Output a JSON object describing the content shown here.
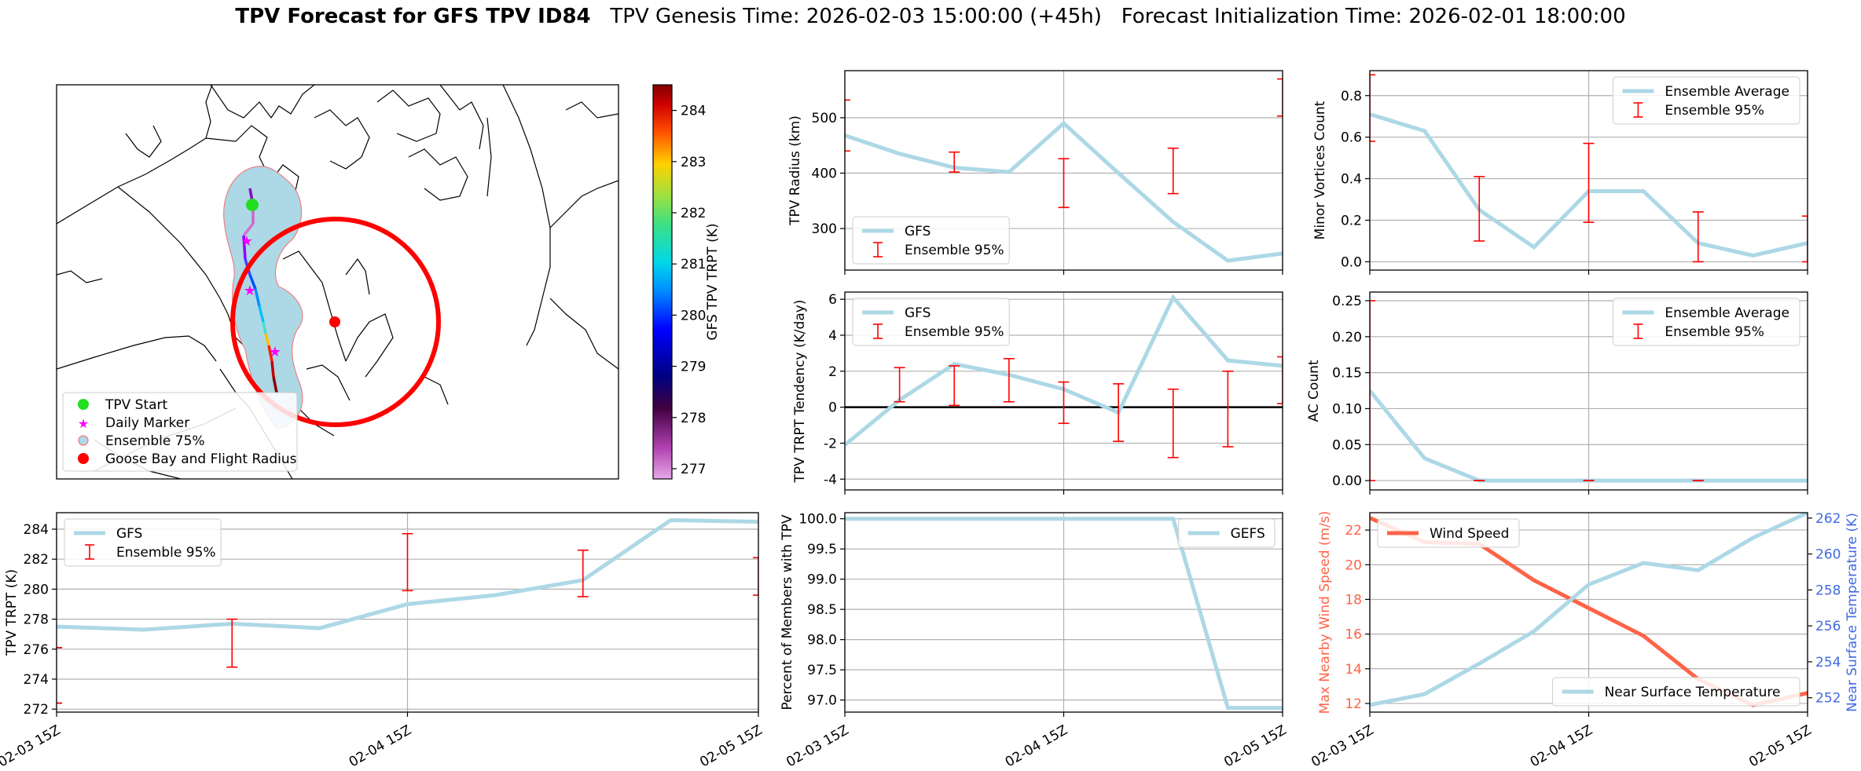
{
  "title": {
    "bold": "TPV Forecast for GFS TPV ID84",
    "genesis": "TPV Genesis Time: 2026-02-03 15:00:00 (+45h)",
    "init": "Forecast Initialization Time: 2026-02-01 18:00:00"
  },
  "colors": {
    "gfs_line": "#add8e6",
    "ensemble_bar": "#ff0000",
    "wind": "#ff6347",
    "temp_axis": "#4169e1",
    "map_circle": "#ff0000",
    "ensemble_fill": "#add8e6"
  },
  "chart_data": [
    {
      "id": "map",
      "type": "map",
      "legend": [
        "TPV Start",
        "Daily Marker",
        "Ensemble 75%",
        "Goose Bay and Flight Radius"
      ],
      "colorbar": {
        "label": "GFS TPV TRPT (K)",
        "min": 276.8,
        "max": 284.5,
        "ticks": [
          277,
          278,
          279,
          280,
          281,
          282,
          283,
          284
        ]
      }
    },
    {
      "id": "trpt",
      "type": "line",
      "ylabel": "TPV TRPT (K)",
      "ylim": [
        271.8,
        285.1
      ],
      "yticks": [
        272,
        274,
        276,
        278,
        280,
        282,
        284
      ],
      "x": [
        0,
        6,
        12,
        18,
        24,
        30,
        36,
        42,
        48
      ],
      "xticks": [
        "02-03 15Z",
        "02-04 15Z",
        "02-05 15Z"
      ],
      "xtick_pos": [
        0,
        24,
        48
      ],
      "series": [
        {
          "name": "GFS",
          "values": [
            277.5,
            277.3,
            277.7,
            277.4,
            279.0,
            279.6,
            280.6,
            284.6,
            284.5
          ]
        }
      ],
      "errorbars": [
        [
          0,
          276.1,
          276.1
        ],
        [
          0,
          272.4,
          272.4
        ],
        [
          12,
          274.8,
          278.0
        ],
        [
          24,
          279.9,
          283.7
        ],
        [
          36,
          279.5,
          282.6
        ],
        [
          48,
          279.6,
          282.1
        ]
      ],
      "legend": [
        "GFS",
        "Ensemble 95%"
      ],
      "legend_loc": "upper-left"
    },
    {
      "id": "radius",
      "type": "line",
      "ylabel": "TPV Radius (km)",
      "ylim": [
        225,
        585
      ],
      "yticks": [
        300,
        400,
        500
      ],
      "x": [
        0,
        6,
        12,
        18,
        24,
        30,
        36,
        42,
        48
      ],
      "series": [
        {
          "name": "GFS",
          "values": [
            468,
            435,
            410,
            402,
            490,
            400,
            312,
            242,
            255
          ]
        }
      ],
      "errorbars": [
        [
          0,
          440,
          532
        ],
        [
          12,
          402,
          438
        ],
        [
          24,
          338,
          426
        ],
        [
          36,
          363,
          445
        ],
        [
          48,
          503,
          570
        ]
      ],
      "legend": [
        "GFS",
        "Ensemble 95%"
      ],
      "legend_loc": "lower-left"
    },
    {
      "id": "tendency",
      "type": "line",
      "ylabel": "TPV TRPT Tendency (K/day)",
      "ylim": [
        -4.6,
        6.4
      ],
      "yticks": [
        -4,
        -2,
        0,
        2,
        4,
        6
      ],
      "zero_line": true,
      "x": [
        0,
        6,
        12,
        18,
        24,
        30,
        36,
        42,
        48
      ],
      "series": [
        {
          "name": "GFS",
          "values": [
            -2.1,
            0.4,
            2.4,
            1.8,
            1.0,
            -0.3,
            6.1,
            2.6,
            2.3
          ]
        }
      ],
      "errorbars": [
        [
          6,
          0.3,
          2.2
        ],
        [
          12,
          0.1,
          2.3
        ],
        [
          18,
          0.3,
          2.7
        ],
        [
          24,
          -0.9,
          1.4
        ],
        [
          30,
          -1.9,
          1.3
        ],
        [
          36,
          -2.8,
          1.0
        ],
        [
          42,
          -2.2,
          2.0
        ],
        [
          48,
          0.2,
          2.8
        ]
      ],
      "legend": [
        "GFS",
        "Ensemble 95%"
      ],
      "legend_loc": "upper-left"
    },
    {
      "id": "percent",
      "type": "line",
      "ylabel": "Percent of Members with TPV",
      "ylim": [
        96.8,
        100.1
      ],
      "yticks": [
        "97.0",
        "97.5",
        "98.0",
        "98.5",
        "99.0",
        "99.5",
        "100.0"
      ],
      "ytick_vals": [
        97.0,
        97.5,
        98.0,
        98.5,
        99.0,
        99.5,
        100.0
      ],
      "x": [
        0,
        6,
        12,
        18,
        24,
        30,
        36,
        42,
        48
      ],
      "series": [
        {
          "name": "GEFS",
          "values": [
            100,
            100,
            100,
            100,
            100,
            100,
            100,
            96.87,
            96.87
          ]
        }
      ],
      "legend": [
        "GEFS"
      ],
      "legend_loc": "upper-right"
    },
    {
      "id": "minor",
      "type": "line",
      "ylabel": "Minor Vortices Count",
      "ylim": [
        -0.04,
        0.92
      ],
      "yticks": [
        "0.0",
        "0.2",
        "0.4",
        "0.6",
        "0.8"
      ],
      "ytick_vals": [
        0.0,
        0.2,
        0.4,
        0.6,
        0.8
      ],
      "x": [
        0,
        6,
        12,
        18,
        24,
        30,
        36,
        42,
        48
      ],
      "series": [
        {
          "name": "Ensemble Average",
          "values": [
            0.71,
            0.63,
            0.25,
            0.07,
            0.34,
            0.34,
            0.09,
            0.03,
            0.09
          ]
        }
      ],
      "errorbars": [
        [
          0,
          0.58,
          0.9
        ],
        [
          12,
          0.1,
          0.41
        ],
        [
          24,
          0.19,
          0.57
        ],
        [
          36,
          0.0,
          0.24
        ],
        [
          48,
          0.0,
          0.22
        ]
      ],
      "legend": [
        "Ensemble Average",
        "Ensemble 95%"
      ],
      "legend_loc": "upper-right"
    },
    {
      "id": "ac",
      "type": "line",
      "ylabel": "AC Count",
      "ylim": [
        -0.013,
        0.262
      ],
      "yticks": [
        "0.00",
        "0.05",
        "0.10",
        "0.15",
        "0.20",
        "0.25"
      ],
      "ytick_vals": [
        0.0,
        0.05,
        0.1,
        0.15,
        0.2,
        0.25
      ],
      "x": [
        0,
        6,
        12,
        18,
        24,
        30,
        36,
        42,
        48
      ],
      "series": [
        {
          "name": "Ensemble Average",
          "values": [
            0.125,
            0.031,
            0,
            0,
            0,
            0,
            0,
            0,
            0
          ]
        }
      ],
      "errorbars": [
        [
          0,
          0.0,
          0.25
        ],
        [
          12,
          0,
          0
        ],
        [
          24,
          0,
          0
        ],
        [
          36,
          0,
          0
        ]
      ],
      "legend": [
        "Ensemble Average",
        "Ensemble 95%"
      ],
      "legend_loc": "upper-right"
    },
    {
      "id": "wind_temp",
      "type": "line",
      "ylabel": "Max Nearby Wind Speed (m/s)",
      "ylabel2": "Near Surface Temperature (K)",
      "ylim": [
        11.5,
        23.0
      ],
      "yticks": [
        12,
        14,
        16,
        18,
        20,
        22
      ],
      "ylim2": [
        251.2,
        262.3
      ],
      "yticks2": [
        252,
        254,
        256,
        258,
        260,
        262
      ],
      "x": [
        0,
        6,
        12,
        18,
        24,
        30,
        36,
        42,
        48
      ],
      "series": [
        {
          "name": "Wind Speed",
          "axis": "left",
          "values": [
            22.7,
            21.3,
            21.2,
            19.1,
            17.5,
            15.9,
            13.4,
            11.9,
            12.6
          ]
        },
        {
          "name": "Near Surface Temperature",
          "axis": "right",
          "values": [
            251.6,
            252.2,
            253.9,
            255.7,
            258.3,
            259.5,
            259.1,
            260.9,
            262.3
          ]
        }
      ],
      "legend": [
        "Wind Speed",
        "Near Surface Temperature"
      ]
    }
  ]
}
